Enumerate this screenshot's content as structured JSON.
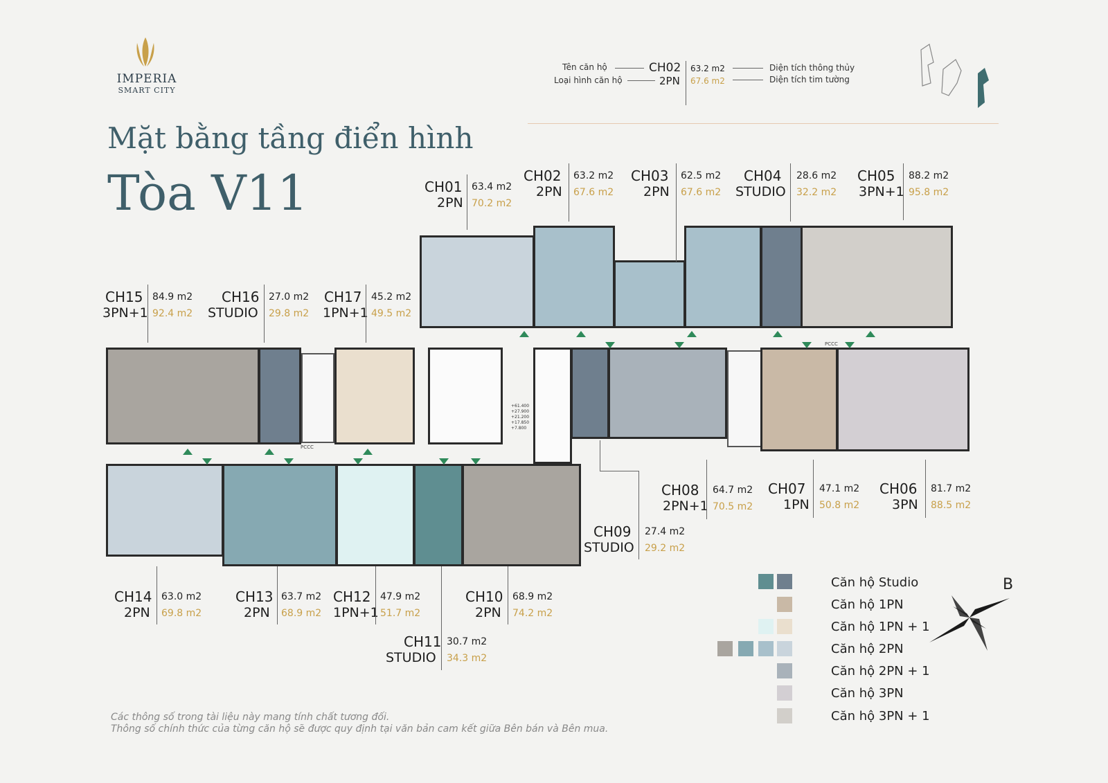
{
  "brand": {
    "name": "IMPERIA",
    "sub": "SMART CITY"
  },
  "title": {
    "line1": "Mặt bằng tầng điển hình",
    "line2": "Tòa V11"
  },
  "key": {
    "name_label": "Tên căn hộ",
    "type_label": "Loại hình căn hộ",
    "name": "CH02",
    "type": "2PN",
    "area_clear": "63.2 m2",
    "area_wall": "67.6 m2",
    "clear_label": "Diện tích thông thủy",
    "wall_label": "Diện tích tim tường"
  },
  "units": [
    {
      "name": "CH01",
      "type": "2PN",
      "a1": "63.4 m2",
      "a2": "70.2 m2"
    },
    {
      "name": "CH02",
      "type": "2PN",
      "a1": "63.2 m2",
      "a2": "67.6 m2"
    },
    {
      "name": "CH03",
      "type": "2PN",
      "a1": "62.5 m2",
      "a2": "67.6 m2"
    },
    {
      "name": "CH04",
      "type": "STUDIO",
      "a1": "28.6 m2",
      "a2": "32.2 m2"
    },
    {
      "name": "CH05",
      "type": "3PN+1",
      "a1": "88.2 m2",
      "a2": "95.8 m2"
    },
    {
      "name": "CH06",
      "type": "3PN",
      "a1": "81.7 m2",
      "a2": "88.5 m2"
    },
    {
      "name": "CH07",
      "type": "1PN",
      "a1": "47.1 m2",
      "a2": "50.8 m2"
    },
    {
      "name": "CH08",
      "type": "2PN+1",
      "a1": "64.7 m2",
      "a2": "70.5 m2"
    },
    {
      "name": "CH09",
      "type": "STUDIO",
      "a1": "27.4 m2",
      "a2": "29.2 m2"
    },
    {
      "name": "CH10",
      "type": "2PN",
      "a1": "68.9 m2",
      "a2": "74.2 m2"
    },
    {
      "name": "CH11",
      "type": "STUDIO",
      "a1": "30.7 m2",
      "a2": "34.3 m2"
    },
    {
      "name": "CH12",
      "type": "1PN+1",
      "a1": "47.9 m2",
      "a2": "51.7 m2"
    },
    {
      "name": "CH13",
      "type": "2PN",
      "a1": "63.7 m2",
      "a2": "68.9 m2"
    },
    {
      "name": "CH14",
      "type": "2PN",
      "a1": "63.0 m2",
      "a2": "69.8 m2"
    },
    {
      "name": "CH15",
      "type": "3PN+1",
      "a1": "84.9 m2",
      "a2": "92.4 m2"
    },
    {
      "name": "CH16",
      "type": "STUDIO",
      "a1": "27.0 m2",
      "a2": "29.8 m2"
    },
    {
      "name": "CH17",
      "type": "1PN+1",
      "a1": "45.2 m2",
      "a2": "49.5 m2"
    }
  ],
  "pccc": "PCCC",
  "levels": [
    "+61.400",
    "+27.900",
    "+21.200",
    "+17.850",
    "+7.800"
  ],
  "legend": [
    {
      "label": "Căn hộ Studio",
      "colors": [
        "#5f8e91",
        "#6f7f8e"
      ]
    },
    {
      "label": "Căn hộ 1PN",
      "colors": [
        "#c9b9a6"
      ]
    },
    {
      "label": "Căn hộ 1PN + 1",
      "colors": [
        "#dff2f2",
        "#eadfce"
      ]
    },
    {
      "label": "Căn hộ 2PN",
      "colors": [
        "#a9a59f",
        "#86a9b2",
        "#a8c0cb",
        "#c9d4dc"
      ]
    },
    {
      "label": "Căn hộ 2PN + 1",
      "colors": [
        "#a9b2ba"
      ]
    },
    {
      "label": "Căn hộ 3PN",
      "colors": [
        "#d3cfd3"
      ]
    },
    {
      "label": "Căn hộ 3PN + 1",
      "colors": [
        "#d2cfca"
      ]
    }
  ],
  "compass": "B",
  "notes": [
    "Các thông số trong tài liệu này mang tính chất tương đối.",
    "Thông số chính thức của từng căn hộ sẽ được quy định tại văn bản cam kết giữa Bên bán và Bên mua."
  ]
}
